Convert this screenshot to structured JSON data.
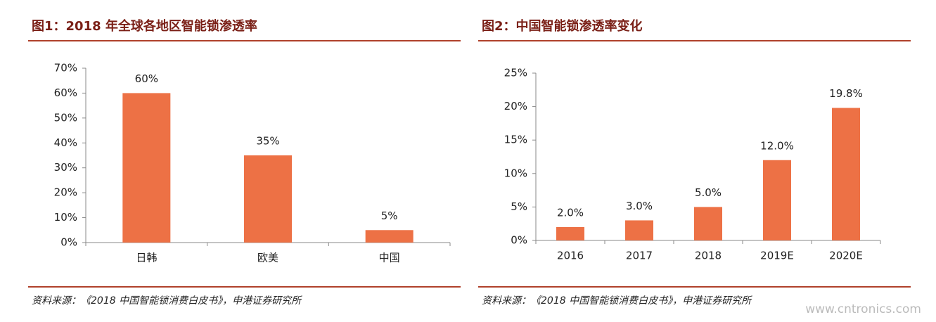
{
  "chart_data": [
    {
      "type": "bar",
      "title": "图1：2018 年全球各地区智能锁渗透率",
      "categories": [
        "日韩",
        "欧美",
        "中国"
      ],
      "values": [
        60,
        35,
        5
      ],
      "value_labels": [
        "60%",
        "35%",
        "5%"
      ],
      "color": "#ed7145",
      "ylim": [
        0,
        70
      ],
      "yticks": [
        {
          "value": 0,
          "label": "0%"
        },
        {
          "value": 10,
          "label": "10%"
        },
        {
          "value": 20,
          "label": "20%"
        },
        {
          "value": 30,
          "label": "30%"
        },
        {
          "value": 40,
          "label": "40%"
        },
        {
          "value": 50,
          "label": "50%"
        },
        {
          "value": 60,
          "label": "60%"
        },
        {
          "value": 70,
          "label": "70%"
        }
      ],
      "source": "资料来源：《2018 中国智能锁消费白皮书》，申港证券研究所"
    },
    {
      "type": "bar",
      "title": "图2：中国智能锁渗透率变化",
      "categories": [
        "2016",
        "2017",
        "2018",
        "2019E",
        "2020E"
      ],
      "values": [
        2.0,
        3.0,
        5.0,
        12.0,
        19.8
      ],
      "value_labels": [
        "2.0%",
        "3.0%",
        "5.0%",
        "12.0%",
        "19.8%"
      ],
      "color": "#ed7145",
      "ylim": [
        0,
        25
      ],
      "yticks": [
        {
          "value": 0,
          "label": "0%"
        },
        {
          "value": 5,
          "label": "5%"
        },
        {
          "value": 10,
          "label": "10%"
        },
        {
          "value": 15,
          "label": "15%"
        },
        {
          "value": 20,
          "label": "20%"
        },
        {
          "value": 25,
          "label": "25%"
        }
      ],
      "source": "资料来源：《2018 中国智能锁消费白皮书》，申港证券研究所"
    }
  ],
  "watermark": "www.cntronics.com"
}
